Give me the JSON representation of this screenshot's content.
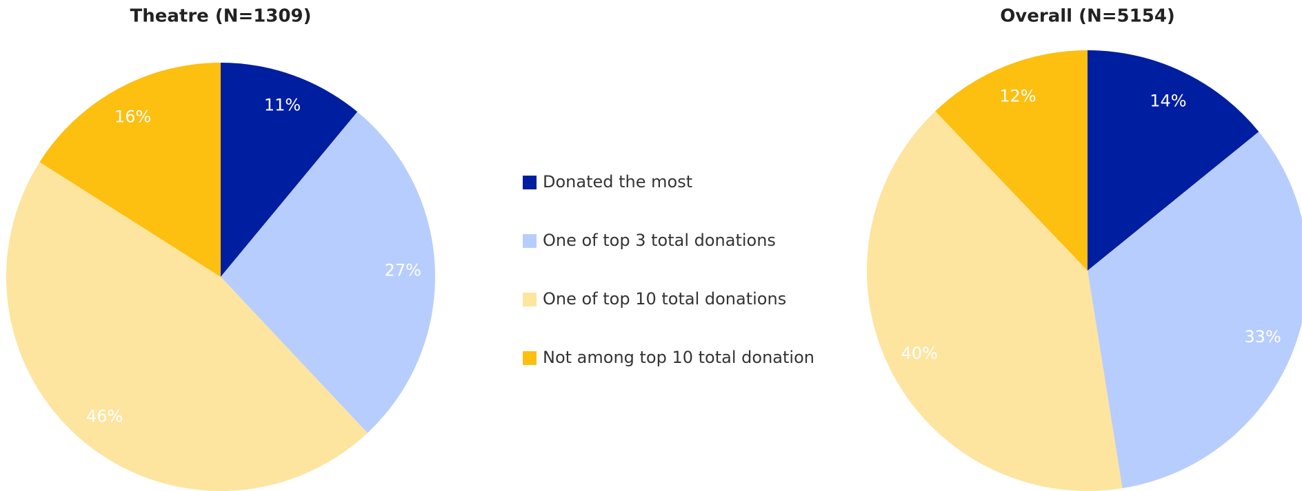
{
  "chart_data": [
    {
      "type": "pie",
      "title": "Theatre (N=1309)",
      "values": [
        11,
        27,
        46,
        16
      ],
      "value_labels": [
        "11%",
        "27%",
        "46%",
        "16%"
      ]
    },
    {
      "type": "pie",
      "title": "Overall (N=5154)",
      "values": [
        14,
        33,
        40,
        12
      ],
      "value_labels": [
        "14%",
        "33%",
        "40%",
        "12%"
      ]
    }
  ],
  "legend": {
    "categories": [
      "Donated the most",
      "One of top 3 total donations",
      "One of top 10 total donations",
      "Not among top 10 total donation"
    ],
    "colors": [
      "#001ea0",
      "#b7cdfd",
      "#fde5a0",
      "#fdbf10"
    ]
  }
}
